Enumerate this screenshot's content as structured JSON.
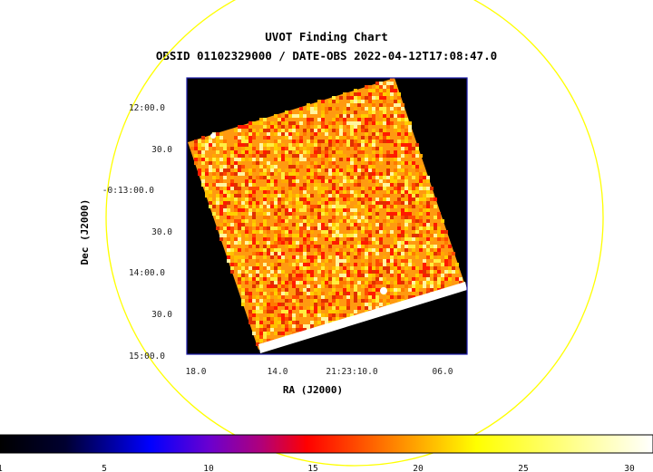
{
  "chart_data": {
    "type": "heatmap",
    "title": "UVOT Finding Chart",
    "subtitle": "OBSID 01102329000 / DATE-OBS 2022-04-12T17:08:47.0",
    "xlabel": "RA (J2000)",
    "ylabel": "Dec (J2000)",
    "x_ticks": [
      "18.0",
      "14.0",
      "21:23:10.0",
      "06.0"
    ],
    "y_ticks": [
      "12:00.0",
      "30.0",
      "-0:13:00.0",
      "30.0",
      "14:00.0",
      "30.0",
      "15:00.0"
    ],
    "colorbar": {
      "range": [
        1,
        31
      ],
      "ticks": [
        "1",
        "5",
        "10",
        "15",
        "20",
        "25",
        "30"
      ],
      "ticks_values": [
        1,
        5,
        10,
        15,
        20,
        25,
        30
      ],
      "colormap": "black-blue-purple-red-orange-yellow-white"
    },
    "overlay": "circle",
    "overlay_color": "#ffff00",
    "background_color": "#000000",
    "frame_color": "#1a1aaa"
  }
}
